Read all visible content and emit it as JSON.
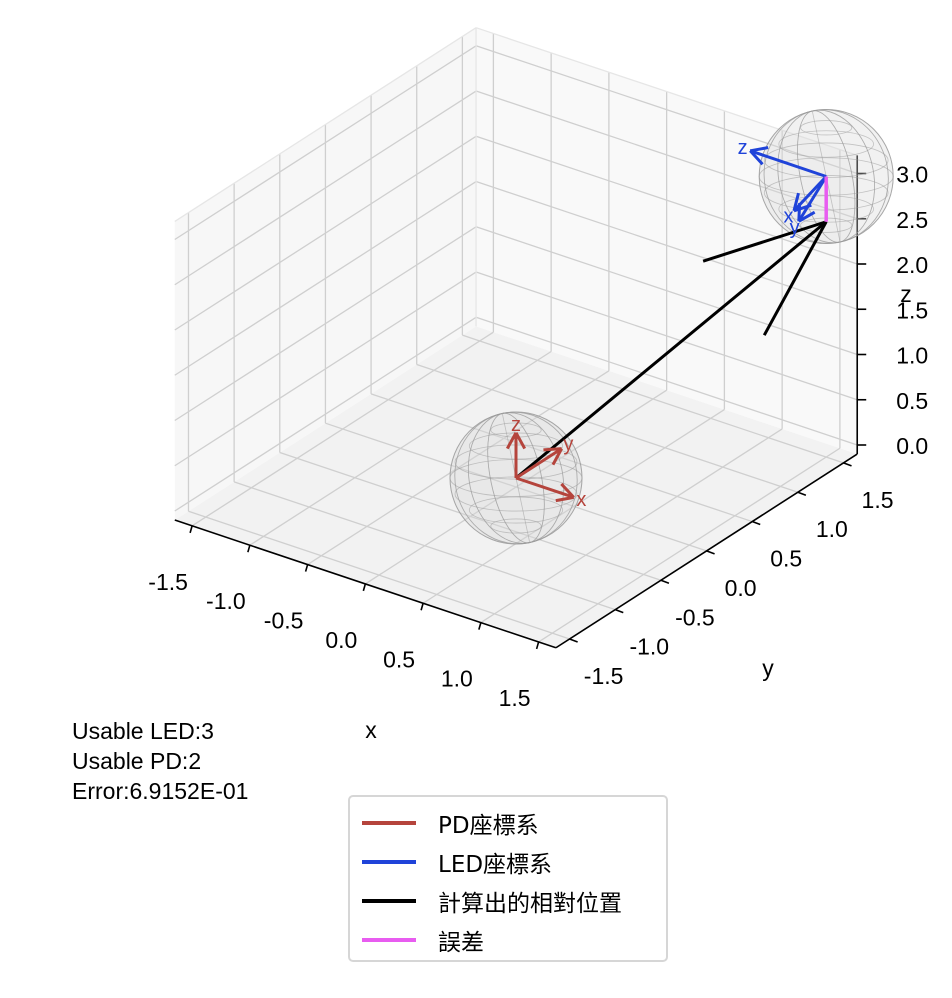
{
  "chart_data": {
    "type": "line3d",
    "xlabel": "x",
    "ylabel": "y",
    "zlabel": "z",
    "xlim": [
      -1.5,
      1.5
    ],
    "ylim": [
      -1.5,
      1.5
    ],
    "zlim": [
      0.0,
      3.0
    ],
    "x_ticks": [
      "-1.5",
      "-1.0",
      "-0.5",
      "0.0",
      "0.5",
      "1.0",
      "1.5"
    ],
    "y_ticks": [
      "-1.5",
      "-1.0",
      "-0.5",
      "0.0",
      "0.5",
      "1.0",
      "1.5"
    ],
    "z_ticks": [
      "0.0",
      "0.5",
      "1.0",
      "1.5",
      "2.0",
      "2.5",
      "3.0"
    ],
    "grid": true,
    "legend_position": "bottom-center",
    "pd_frame": {
      "origin": [
        0,
        0,
        0
      ],
      "axes": [
        {
          "label": "x",
          "end": [
            0.5,
            0,
            0
          ]
        },
        {
          "label": "y",
          "end": [
            0,
            0.5,
            0
          ]
        },
        {
          "label": "z",
          "end": [
            0,
            0,
            0.5
          ]
        }
      ]
    },
    "led_frame": {
      "origin": [
        1.5,
        1.5,
        3.0
      ],
      "axes": [
        {
          "label": "x",
          "end": [
            1.3,
            1.4,
            2.6
          ]
        },
        {
          "label": "y",
          "end": [
            1.5,
            1.2,
            2.7
          ]
        },
        {
          "label": "z",
          "end": [
            1.0,
            1.3,
            3.2
          ]
        }
      ]
    },
    "computed_vector": {
      "from": [
        0,
        0,
        0
      ],
      "to": [
        1.5,
        1.5,
        2.5
      ]
    },
    "error_segment": {
      "from": [
        1.5,
        1.5,
        2.5
      ],
      "to": [
        1.5,
        1.5,
        3.0
      ]
    }
  },
  "colors": {
    "pd": "#b5443c",
    "led": "#1f43d9",
    "computed": "#000000",
    "error": "#e85cf0"
  },
  "info": {
    "usable_led": "Usable LED:3",
    "usable_pd": "Usable PD:2",
    "error": "Error:6.9152E-01"
  },
  "legend": [
    {
      "label": "PD座標系",
      "color": "#b5443c"
    },
    {
      "label": "LED座標系",
      "color": "#1f43d9"
    },
    {
      "label": "計算出的相對位置",
      "color": "#000000"
    },
    {
      "label": "誤差",
      "color": "#e85cf0"
    }
  ]
}
